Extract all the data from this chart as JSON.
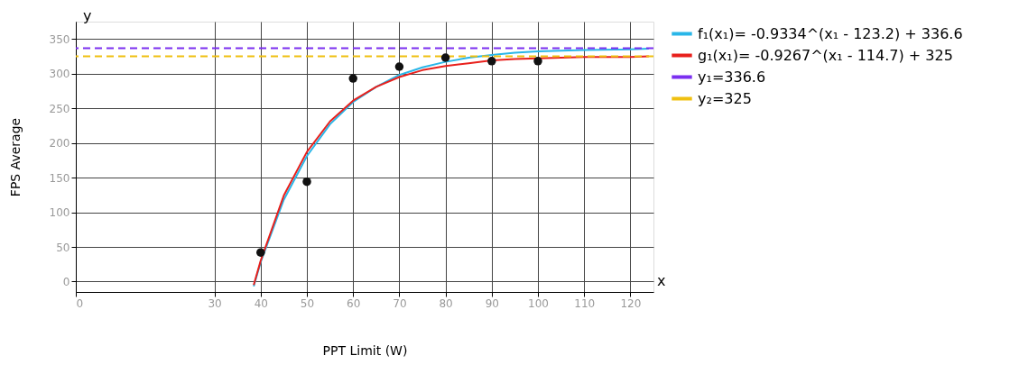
{
  "chart_data": {
    "type": "line",
    "xlabel": "PPT Limit (W)",
    "ylabel": "FPS Average",
    "annotations": [
      "y",
      "x"
    ],
    "xlim": [
      0,
      125
    ],
    "ylim": [
      -15,
      375
    ],
    "xticks": [
      0,
      30,
      40,
      50,
      60,
      70,
      80,
      90,
      100,
      110,
      120
    ],
    "yticks": [
      0,
      50,
      100,
      150,
      200,
      250,
      300,
      350
    ],
    "grid": true,
    "legend": "right",
    "line_style": "solid",
    "series": [
      {
        "name": "f₁(x₁)= -0.9334^(x₁ - 123.2) + 336.6",
        "color": "#29b6e8",
        "x": [
          38.5,
          40,
          45,
          50,
          55,
          60,
          65,
          70,
          75,
          80,
          85,
          90,
          95,
          100,
          110,
          120,
          124
        ],
        "values": [
          -7,
          28,
          118,
          181,
          227,
          259,
          281,
          298,
          309,
          317,
          323,
          327,
          330,
          332,
          334,
          335,
          336
        ]
      },
      {
        "name": "g₁(x₁)= -0.9267^(x₁ - 114.7) + 325",
        "color": "#e8201c",
        "x": [
          38.5,
          40,
          45,
          50,
          55,
          60,
          65,
          70,
          75,
          80,
          85,
          90,
          95,
          100,
          110,
          120,
          124
        ],
        "values": [
          -5,
          30,
          124,
          187,
          231,
          261,
          281,
          295,
          305,
          311,
          315,
          319,
          321,
          322,
          324,
          324,
          325
        ]
      },
      {
        "color": "#111111",
        "type": "scatter",
        "marker": "circle",
        "x": [
          40,
          50,
          60,
          70,
          80,
          90,
          100
        ],
        "values": [
          42,
          144,
          293,
          310,
          323,
          318,
          318
        ]
      }
    ],
    "ref_lines": [
      {
        "axis": "y",
        "value": 336.6,
        "label": "y₁=336.6",
        "color": "#7b2ff0",
        "line_style": "dashed"
      },
      {
        "axis": "y",
        "value": 325,
        "label": "y₂=325",
        "color": "#f0c010",
        "line_style": "dashed"
      }
    ]
  }
}
